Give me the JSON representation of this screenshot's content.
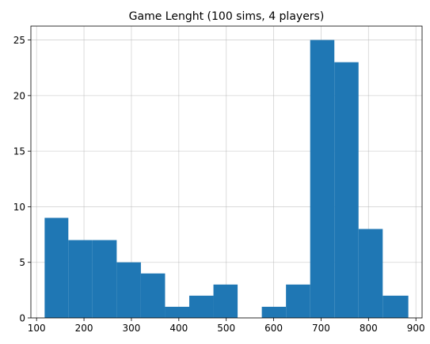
{
  "chart_data": {
    "type": "bar",
    "title": "Game Lenght (100 sims, 4 players)",
    "xlabel": "",
    "ylabel": "",
    "xlim": [
      88,
      913
    ],
    "ylim": [
      0,
      26.25
    ],
    "xticks": [
      100,
      200,
      300,
      400,
      500,
      600,
      700,
      800,
      900
    ],
    "yticks": [
      0,
      5,
      10,
      15,
      20,
      25
    ],
    "grid": true,
    "bar_color": "#1f77b4",
    "bins": [
      {
        "x0": 117,
        "x1": 167,
        "value": 9
      },
      {
        "x0": 167,
        "x1": 218,
        "value": 7
      },
      {
        "x0": 218,
        "x1": 269,
        "value": 7
      },
      {
        "x0": 269,
        "x1": 320,
        "value": 5
      },
      {
        "x0": 320,
        "x1": 371,
        "value": 4
      },
      {
        "x0": 371,
        "x1": 422,
        "value": 1
      },
      {
        "x0": 422,
        "x1": 473,
        "value": 2
      },
      {
        "x0": 473,
        "x1": 524,
        "value": 3
      },
      {
        "x0": 524,
        "x1": 575,
        "value": 0
      },
      {
        "x0": 575,
        "x1": 626,
        "value": 1
      },
      {
        "x0": 626,
        "x1": 677,
        "value": 3
      },
      {
        "x0": 677,
        "x1": 728,
        "value": 25
      },
      {
        "x0": 728,
        "x1": 779,
        "value": 23
      },
      {
        "x0": 779,
        "x1": 830,
        "value": 8
      },
      {
        "x0": 830,
        "x1": 884,
        "value": 2
      }
    ]
  }
}
